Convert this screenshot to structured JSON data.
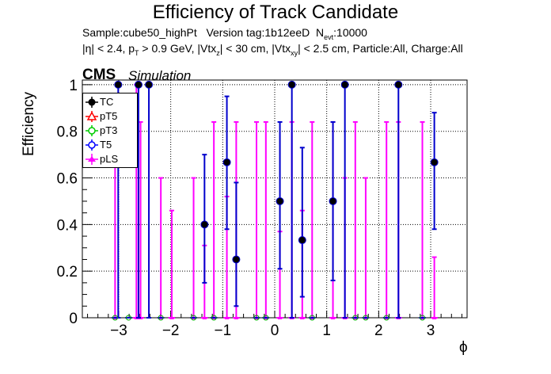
{
  "header": {
    "title": "Efficiency of Track Candidate",
    "sample_label": "Sample:cube50_highPt",
    "version_label": "Version tag:1b12eeD",
    "nevt_label": "N",
    "nevt_sub": "evt",
    "nevt_value": ":10000",
    "cuts_part1": "|η| < 2.4, p",
    "cuts_sub1": "T",
    "cuts_part2": " > 0.9 GeV, |Vtx",
    "cuts_sub2": "z",
    "cuts_part3": "| < 30 cm, |Vtx",
    "cuts_sub3": "xy",
    "cuts_part4": "| < 2.5 cm, Particle:All, Charge:All",
    "cms": "CMS",
    "simulation": "Simulation"
  },
  "chart_data": {
    "type": "scatter",
    "title": "Efficiency of Track Candidate",
    "xlabel": "ϕ",
    "ylabel": "Efficiency",
    "xlim": [
      -3.7,
      3.7
    ],
    "ylim": [
      0,
      1.02
    ],
    "xticks": [
      -3,
      -2,
      -1,
      0,
      1,
      2,
      3
    ],
    "yticks": [
      0,
      0.2,
      0.4,
      0.6,
      0.8,
      1
    ],
    "xtick_labels": [
      "−3",
      "−2",
      "−1",
      "0",
      "1",
      "2",
      "3"
    ],
    "ytick_labels": [
      "0",
      "0.2",
      "0.4",
      "0.6",
      "0.8",
      "1"
    ],
    "grid": true,
    "legend_position": "top-left",
    "bin_half_width": 0.065,
    "series": [
      {
        "name": "TC",
        "color": "#000000",
        "marker": "filled-circle",
        "points": [
          {
            "x": -3.01,
            "y": 1.0,
            "lo": 0.0,
            "hi": 1.0
          },
          {
            "x": -2.62,
            "y": 1.0,
            "lo": 0.0,
            "hi": 1.0
          },
          {
            "x": -2.42,
            "y": 1.0,
            "lo": 0.0,
            "hi": 1.0
          },
          {
            "x": -1.35,
            "y": 0.4,
            "lo": 0.15,
            "hi": 0.7
          },
          {
            "x": -0.92,
            "y": 0.667,
            "lo": 0.38,
            "hi": 0.95
          },
          {
            "x": -0.74,
            "y": 0.25,
            "lo": 0.05,
            "hi": 0.58
          },
          {
            "x": 0.1,
            "y": 0.5,
            "lo": 0.21,
            "hi": 0.84
          },
          {
            "x": 0.33,
            "y": 1.0,
            "lo": 0.0,
            "hi": 1.0
          },
          {
            "x": 0.53,
            "y": 0.333,
            "lo": 0.09,
            "hi": 0.73
          },
          {
            "x": 1.12,
            "y": 0.5,
            "lo": 0.16,
            "hi": 0.84
          },
          {
            "x": 1.35,
            "y": 1.0,
            "lo": 0.0,
            "hi": 1.0
          },
          {
            "x": 2.38,
            "y": 1.0,
            "lo": 0.0,
            "hi": 1.0
          },
          {
            "x": 3.07,
            "y": 0.667,
            "lo": 0.38,
            "hi": 0.88
          },
          {
            "x": -3.07,
            "y": 0.0
          },
          {
            "x": -2.81,
            "y": 0.0
          },
          {
            "x": -2.19,
            "y": 0.0
          },
          {
            "x": -1.56,
            "y": 0.0
          },
          {
            "x": -1.17,
            "y": 0.0
          },
          {
            "x": -0.35,
            "y": 0.0
          },
          {
            "x": -0.17,
            "y": 0.0
          },
          {
            "x": 0.72,
            "y": 0.0
          },
          {
            "x": 1.55,
            "y": 0.0
          },
          {
            "x": 1.75,
            "y": 0.0
          },
          {
            "x": 2.15,
            "y": 0.0
          },
          {
            "x": 2.84,
            "y": 0.0
          }
        ]
      },
      {
        "name": "pT5",
        "color": "#ff0000",
        "marker": "open-triangle",
        "points": []
      },
      {
        "name": "pT3",
        "color": "#00cc00",
        "marker": "open-circle",
        "points": []
      },
      {
        "name": "T5",
        "color": "#0000ff",
        "marker": "open-circle",
        "points": []
      },
      {
        "name": "pLS",
        "color": "#ff00ff",
        "marker": "triangle",
        "points": [
          {
            "x": -3.07,
            "y": 0.0,
            "lo": 0.0,
            "hi": 0.84
          },
          {
            "x": -2.66,
            "y": 0.0,
            "lo": 0.0,
            "hi": 1.0
          },
          {
            "x": -2.58,
            "y": 0.0,
            "lo": 0.0,
            "hi": 0.84
          },
          {
            "x": -2.19,
            "y": 0.0,
            "lo": 0.0,
            "hi": 0.6
          },
          {
            "x": -1.98,
            "y": 0.0,
            "lo": 0.0,
            "hi": 0.46
          },
          {
            "x": -1.56,
            "y": 0.0,
            "lo": 0.0,
            "hi": 0.6
          },
          {
            "x": -1.35,
            "y": 0.0,
            "lo": 0.0,
            "hi": 0.31
          },
          {
            "x": -1.17,
            "y": 0.0,
            "lo": 0.0,
            "hi": 0.84
          },
          {
            "x": -0.92,
            "y": 0.0,
            "lo": 0.0,
            "hi": 0.52
          },
          {
            "x": -0.74,
            "y": 0.0,
            "lo": 0.0,
            "hi": 0.84
          },
          {
            "x": -0.35,
            "y": 0.0,
            "lo": 0.0,
            "hi": 0.84
          },
          {
            "x": -0.17,
            "y": 0.0,
            "lo": 0.0,
            "hi": 0.84
          },
          {
            "x": 0.1,
            "y": 0.0,
            "lo": 0.0,
            "hi": 0.37
          },
          {
            "x": 0.33,
            "y": 0.0,
            "lo": 0.0,
            "hi": 0.84
          },
          {
            "x": 0.53,
            "y": 0.0,
            "lo": 0.0,
            "hi": 0.46
          },
          {
            "x": 0.72,
            "y": 0.0,
            "lo": 0.0,
            "hi": 0.84
          },
          {
            "x": 1.12,
            "y": 0.0,
            "lo": 0.0,
            "hi": 0.84
          },
          {
            "x": 1.35,
            "y": 0.0,
            "lo": 0.0,
            "hi": 0.6
          },
          {
            "x": 1.55,
            "y": 0.0,
            "lo": 0.0,
            "hi": 0.84
          },
          {
            "x": 1.75,
            "y": 0.0,
            "lo": 0.0,
            "hi": 0.6
          },
          {
            "x": 2.15,
            "y": 0.0,
            "lo": 0.0,
            "hi": 0.84
          },
          {
            "x": 2.38,
            "y": 0.0,
            "lo": 0.0,
            "hi": 0.84
          },
          {
            "x": 2.84,
            "y": 0.0,
            "lo": 0.0,
            "hi": 0.84
          },
          {
            "x": 3.07,
            "y": 0.0,
            "lo": 0.0,
            "hi": 0.26
          }
        ]
      }
    ]
  }
}
